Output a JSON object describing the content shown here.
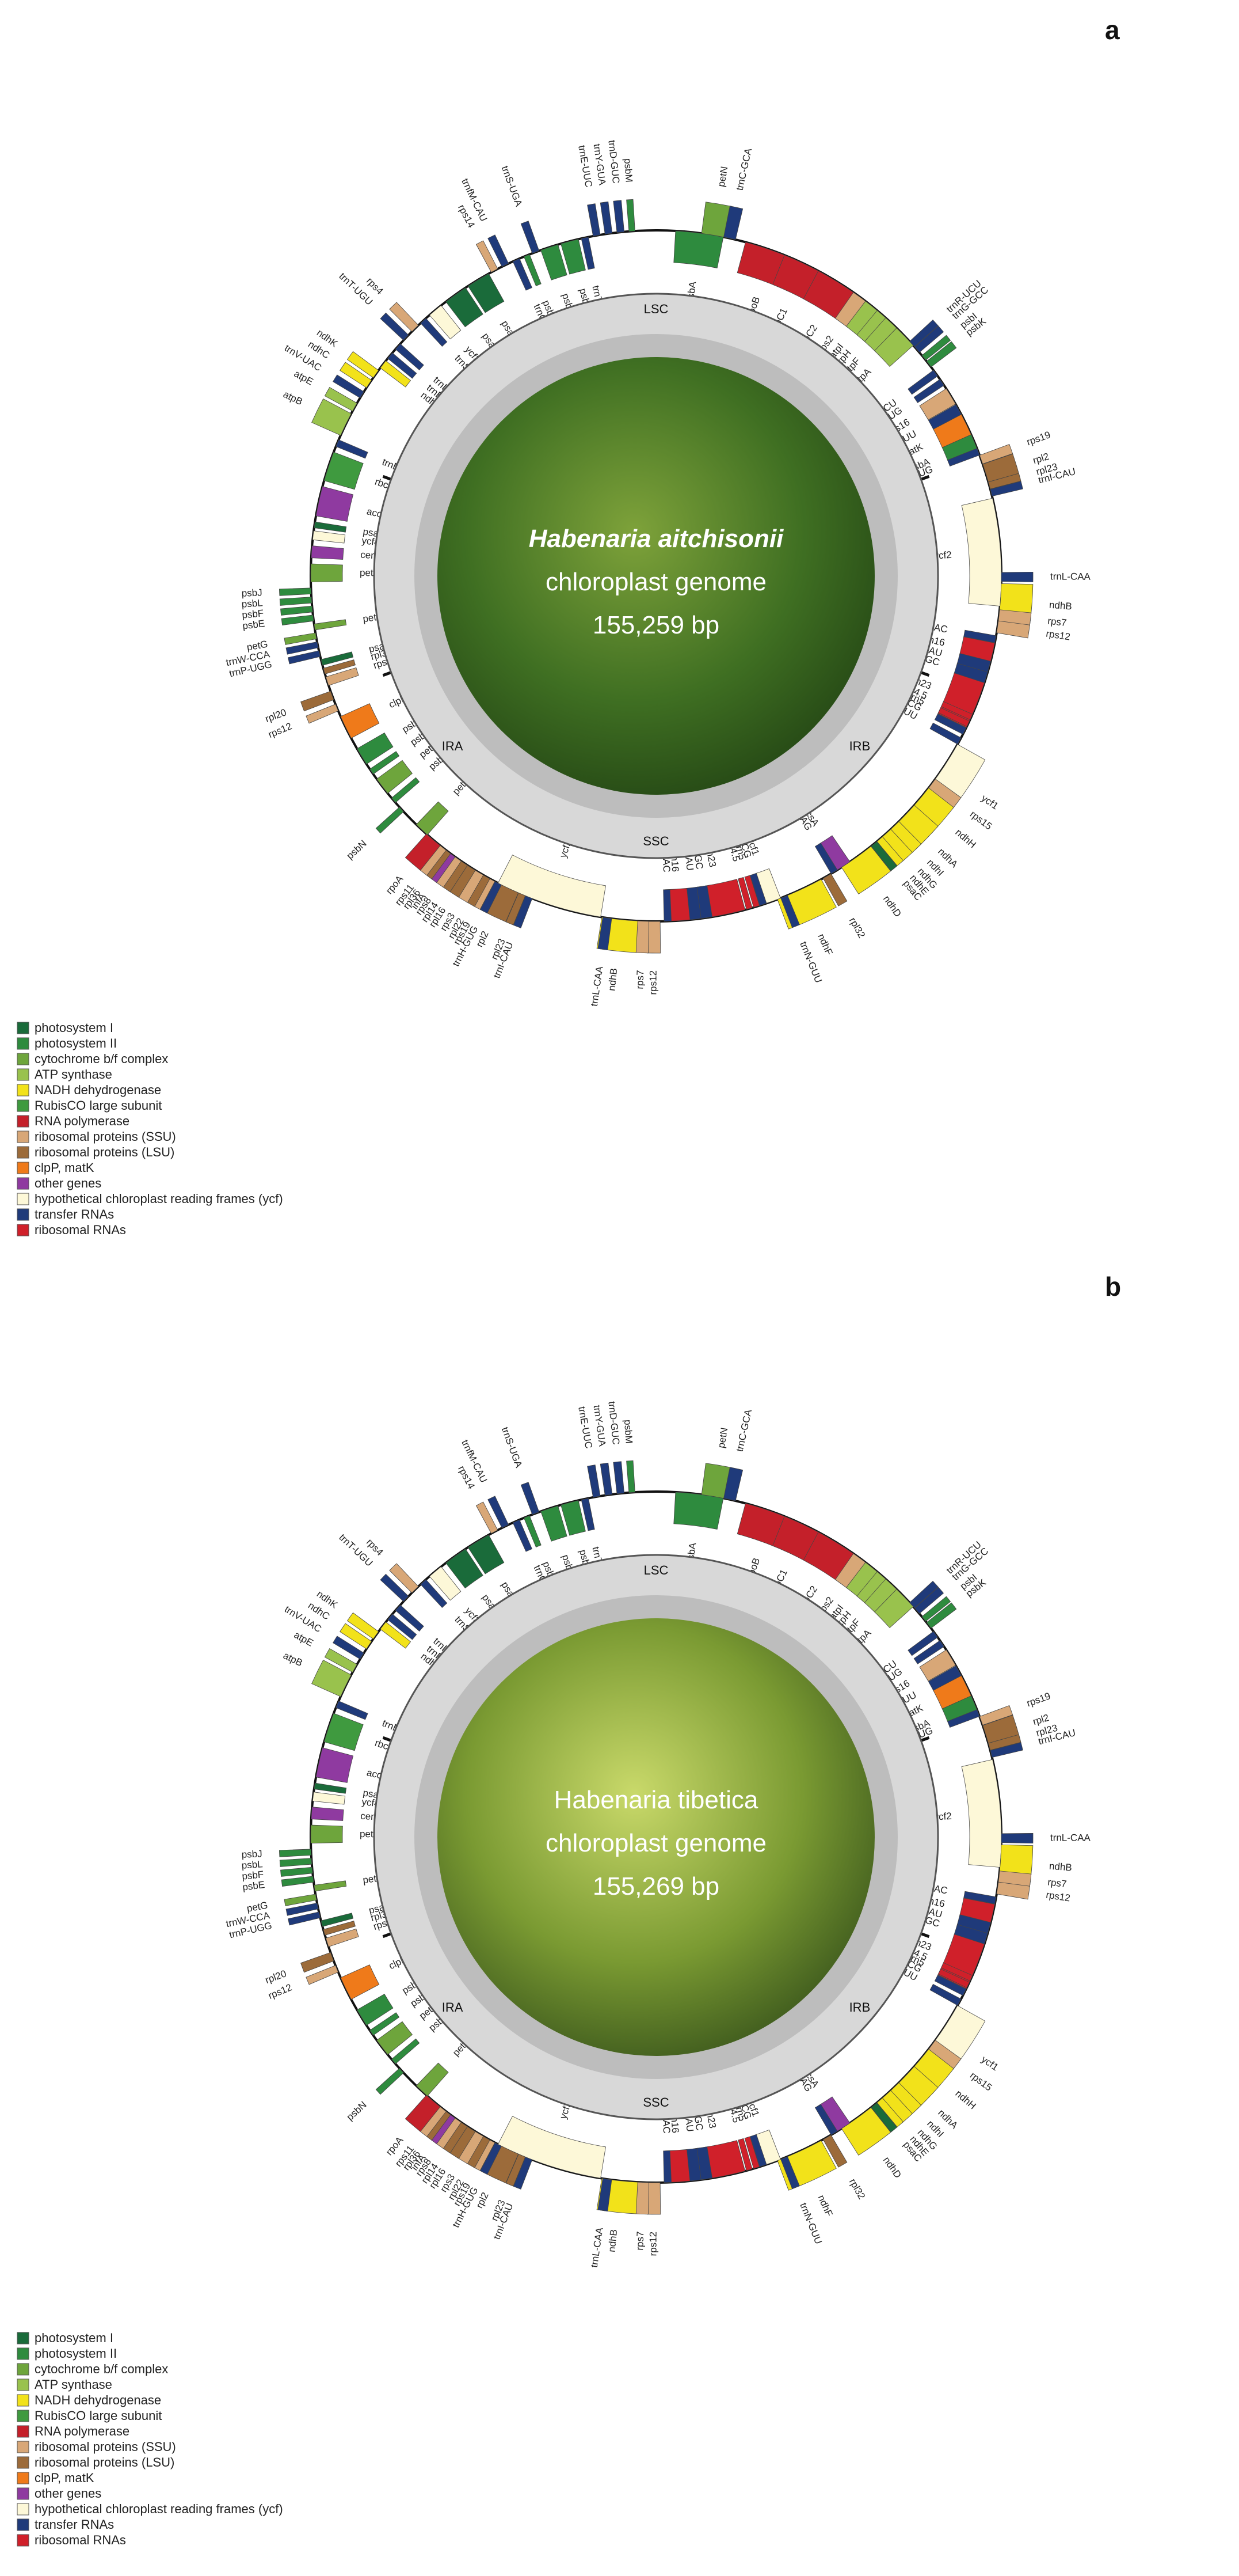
{
  "category_colors": {
    "PSI": "#1a6b3a",
    "PSII": "#2e8b3e",
    "CYT": "#6ea53c",
    "ATP": "#99c24d",
    "NDH": "#f2e21a",
    "RBC": "#3f9a3f",
    "RPO": "#c4202a",
    "SSU": "#d8a777",
    "LSU": "#9c6b3a",
    "CLP": "#ef7a1a",
    "OTH": "#8f3aa0",
    "YCF": "#fdf8d8",
    "TRN": "#1f3a7a",
    "RRN": "#d0202a"
  },
  "legend": [
    {
      "key": "PSI",
      "label": "photosystem I"
    },
    {
      "key": "PSII",
      "label": "photosystem II"
    },
    {
      "key": "CYT",
      "label": "cytochrome b/f complex"
    },
    {
      "key": "ATP",
      "label": "ATP synthase"
    },
    {
      "key": "NDH",
      "label": "NADH dehydrogenase"
    },
    {
      "key": "RBC",
      "label": "RubisCO large subunit"
    },
    {
      "key": "RPO",
      "label": "RNA polymerase"
    },
    {
      "key": "SSU",
      "label": "ribosomal proteins (SSU)"
    },
    {
      "key": "LSU",
      "label": "ribosomal proteins (LSU)"
    },
    {
      "key": "CLP",
      "label": "clpP, matK"
    },
    {
      "key": "OTH",
      "label": "other genes"
    },
    {
      "key": "YCF",
      "label": "hypothetical chloroplast reading frames (ycf)"
    },
    {
      "key": "TRN",
      "label": "transfer RNAs"
    },
    {
      "key": "RRN",
      "label": "ribosomal RNAs"
    }
  ],
  "regions": [
    "LSC",
    "IRB",
    "SSC",
    "IRA"
  ],
  "panels": [
    {
      "letter": "a",
      "species": "Habenaria aitchisonii",
      "subtitle": "chloroplast genome",
      "length": "155,259 bp",
      "photo": {
        "c1": "#7ea23a",
        "c2": "#3f6f22",
        "c3": "#1f3f12"
      }
    },
    {
      "letter": "b",
      "species": "Habenaria tibetica",
      "subtitle": "chloroplast genome",
      "length": "155,269 bp",
      "photo": {
        "c1": "#c9d96a",
        "c2": "#7a9a32",
        "c3": "#2f4a18"
      }
    }
  ],
  "genes": [
    {
      "name": "psbA",
      "a": 2,
      "w": 8,
      "cat": "PSII",
      "side": "in"
    },
    {
      "name": "petN",
      "a": 9,
      "w": 4,
      "cat": "CYT",
      "side": "out"
    },
    {
      "name": "trnC-GCA",
      "a": 15,
      "w": 2,
      "cat": "TRN",
      "side": "out"
    },
    {
      "name": "rpoB",
      "a": 21,
      "w": 10,
      "cat": "RPO",
      "side": "in"
    },
    {
      "name": "rpoC1",
      "a": 32,
      "w": 8,
      "cat": "RPO",
      "side": "in"
    },
    {
      "name": "rpoC2",
      "a": 42,
      "w": 9,
      "cat": "RPO",
      "side": "in"
    },
    {
      "name": "rps2",
      "a": 53,
      "w": 3,
      "cat": "SSU",
      "side": "in"
    },
    {
      "name": "atpI",
      "a": 57,
      "w": 3,
      "cat": "ATP",
      "side": "in"
    },
    {
      "name": "atpH",
      "a": 61,
      "w": 2,
      "cat": "ATP",
      "side": "in"
    },
    {
      "name": "atpF",
      "a": 64,
      "w": 3,
      "cat": "ATP",
      "side": "in"
    },
    {
      "name": "atpA",
      "a": 68,
      "w": 4,
      "cat": "ATP",
      "side": "in"
    },
    {
      "name": "trnR-UCU",
      "a": 73,
      "w": 1.2,
      "cat": "TRN",
      "side": "out"
    },
    {
      "name": "trnG-GCC",
      "a": 75,
      "w": 1.2,
      "cat": "TRN",
      "side": "out"
    },
    {
      "name": "psbI",
      "a": 78,
      "w": 1,
      "cat": "PSII",
      "side": "out"
    },
    {
      "name": "psbK",
      "a": 80,
      "w": 1.2,
      "cat": "PSII",
      "side": "out"
    },
    {
      "name": "trnS-GCU",
      "a": 83,
      "w": 1.2,
      "cat": "TRN",
      "side": "in"
    },
    {
      "name": "trnQ-UUG",
      "a": 86,
      "w": 1.2,
      "cat": "TRN",
      "side": "in"
    },
    {
      "name": "rps16",
      "a": 89,
      "w": 3,
      "cat": "SSU",
      "side": "in"
    },
    {
      "name": "trnK-UUU",
      "a": 94,
      "w": 2,
      "cat": "TRN",
      "side": "in"
    },
    {
      "name": "matK",
      "a": 97,
      "w": 4,
      "cat": "CLP",
      "side": "in"
    },
    {
      "name": "psbA",
      "a": 103,
      "w": 3,
      "cat": "PSII",
      "side": "in"
    },
    {
      "name": "trnH-GUG",
      "a": 107,
      "w": 1.2,
      "cat": "TRN",
      "side": "in"
    },
    {
      "name": "rps19",
      "a": 109,
      "w": 1.5,
      "cat": "SSU",
      "side": "out"
    },
    {
      "name": "rpl2",
      "a": 111.5,
      "w": 4,
      "cat": "LSU",
      "side": "out"
    },
    {
      "name": "rpl23",
      "a": 116.5,
      "w": 1.2,
      "cat": "LSU",
      "side": "out"
    },
    {
      "name": "trnI-CAU",
      "a": 118.5,
      "w": 1.2,
      "cat": "TRN",
      "side": "out"
    },
    {
      "name": "ycf2",
      "a": 121,
      "w": 18,
      "cat": "YCF",
      "side": "in"
    },
    {
      "name": "trnL-CAA",
      "a": 141,
      "w": 1.5,
      "cat": "TRN",
      "side": "out"
    },
    {
      "name": "ndhB",
      "a": 144,
      "w": 6,
      "cat": "NDH",
      "side": "out"
    },
    {
      "name": "rps7",
      "a": 151,
      "w": 2,
      "cat": "SSU",
      "side": "out"
    },
    {
      "name": "rps12",
      "a": 154,
      "w": 2,
      "cat": "SSU",
      "side": "out"
    },
    {
      "name": "trnV-GAC",
      "a": 158,
      "w": 1.2,
      "cat": "TRN",
      "side": "in"
    },
    {
      "name": "rrn16",
      "a": 160,
      "w": 4,
      "cat": "RRN",
      "side": "in"
    },
    {
      "name": "trnI-GAU",
      "a": 165,
      "w": 2,
      "cat": "TRN",
      "side": "in"
    },
    {
      "name": "trnA-UGC",
      "a": 168,
      "w": 2,
      "cat": "TRN",
      "side": "in"
    },
    {
      "name": "rrn23",
      "a": 171,
      "w": 8,
      "cat": "RRN",
      "side": "in"
    },
    {
      "name": "rrn4.5",
      "a": 180,
      "w": 1,
      "cat": "RRN",
      "side": "in"
    },
    {
      "name": "rrn5",
      "a": 182,
      "w": 1,
      "cat": "RRN",
      "side": "in"
    },
    {
      "name": "trnR-ACG",
      "a": 184,
      "w": 1.2,
      "cat": "TRN",
      "side": "in"
    },
    {
      "name": "trnN-GUU",
      "a": 187,
      "w": 1.2,
      "cat": "TRN",
      "side": "in"
    },
    {
      "name": "ycf1",
      "a": 189,
      "w": 10,
      "cat": "YCF",
      "side": "out"
    },
    {
      "name": "rps15",
      "a": 200,
      "w": 2,
      "cat": "SSU",
      "side": "out"
    },
    {
      "name": "ndhH",
      "a": 203,
      "w": 5,
      "cat": "NDH",
      "side": "out"
    },
    {
      "name": "ndhA",
      "a": 209,
      "w": 5,
      "cat": "NDH",
      "side": "out"
    },
    {
      "name": "ndhI",
      "a": 215,
      "w": 2,
      "cat": "NDH",
      "side": "out"
    },
    {
      "name": "ndhG",
      "a": 218,
      "w": 2,
      "cat": "NDH",
      "side": "out"
    },
    {
      "name": "ndhE",
      "a": 221,
      "w": 1.2,
      "cat": "NDH",
      "side": "out"
    },
    {
      "name": "psaC",
      "a": 223,
      "w": 1.2,
      "cat": "PSI",
      "side": "out"
    },
    {
      "name": "ndhD",
      "a": 225,
      "w": 6,
      "cat": "NDH",
      "side": "out"
    },
    {
      "name": "ccsA",
      "a": 232,
      "w": 3,
      "cat": "OTH",
      "side": "in"
    },
    {
      "name": "trnL-UAG",
      "a": 236,
      "w": 1.2,
      "cat": "TRN",
      "side": "in"
    },
    {
      "name": "rpl32",
      "a": 238,
      "w": 1.5,
      "cat": "LSU",
      "side": "out"
    },
    {
      "name": "ndhF",
      "a": 241,
      "w": 8,
      "cat": "NDH",
      "side": "out"
    },
    {
      "name": "trnN-GUU",
      "a": 251,
      "w": 1.2,
      "cat": "TRN",
      "side": "out"
    },
    {
      "name": "ycf1",
      "a": 253,
      "w": 3,
      "cat": "YCF",
      "side": "in"
    },
    {
      "name": "trnR-ACG",
      "a": 257,
      "w": 1.2,
      "cat": "TRN",
      "side": "in"
    },
    {
      "name": "rrn5",
      "a": 259,
      "w": 1,
      "cat": "RRN",
      "side": "in"
    },
    {
      "name": "rrn4.5",
      "a": 261,
      "w": 1,
      "cat": "RRN",
      "side": "in"
    },
    {
      "name": "rrn23",
      "a": 263,
      "w": 8,
      "cat": "RRN",
      "side": "in"
    },
    {
      "name": "trnA-UGC",
      "a": 272,
      "w": 2,
      "cat": "TRN",
      "side": "in"
    },
    {
      "name": "trnI-GAU",
      "a": 275,
      "w": 2,
      "cat": "TRN",
      "side": "in"
    },
    {
      "name": "rrn16",
      "a": 278,
      "w": 4,
      "cat": "RRN",
      "side": "in"
    },
    {
      "name": "trnV-GAC",
      "a": 283,
      "w": 1.2,
      "cat": "TRN",
      "side": "in"
    },
    {
      "name": "rps12",
      "a": 286,
      "w": 2,
      "cat": "SSU",
      "side": "out"
    },
    {
      "name": "rps7",
      "a": 289,
      "w": 2,
      "cat": "SSU",
      "side": "out"
    },
    {
      "name": "ndhB",
      "a": 292,
      "w": 6,
      "cat": "NDH",
      "side": "out"
    },
    {
      "name": "trnL-CAA",
      "a": 299,
      "w": 1.5,
      "cat": "TRN",
      "side": "out"
    },
    {
      "name": "ycf2",
      "a": 302,
      "w": 18,
      "cat": "YCF",
      "side": "in"
    },
    {
      "name": "trnI-CAU",
      "a": 321,
      "w": 1.2,
      "cat": "TRN",
      "side": "out"
    },
    {
      "name": "rpl23",
      "a": 323,
      "w": 1.2,
      "cat": "LSU",
      "side": "out"
    },
    {
      "name": "rpl2",
      "a": 325,
      "w": 4,
      "cat": "LSU",
      "side": "out"
    },
    {
      "name": "trnH-GUG",
      "a": 330,
      "w": 1.2,
      "cat": "TRN",
      "side": "out"
    },
    {
      "name": "rps19",
      "a": 332,
      "w": 1.2,
      "cat": "SSU",
      "side": "out"
    },
    {
      "name": "rpl22",
      "a": 333.5,
      "w": 1.5,
      "cat": "LSU",
      "side": "out"
    },
    {
      "name": "rps3",
      "a": 335.5,
      "w": 2,
      "cat": "SSU",
      "side": "out"
    },
    {
      "name": "rpl16",
      "a": 338,
      "w": 2,
      "cat": "LSU",
      "side": "out"
    },
    {
      "name": "rpl14",
      "a": 340.5,
      "w": 1.5,
      "cat": "LSU",
      "side": "out"
    },
    {
      "name": "rps8",
      "a": 342.5,
      "w": 1.5,
      "cat": "SSU",
      "side": "out"
    },
    {
      "name": "infA",
      "a": 344.5,
      "w": 1,
      "cat": "OTH",
      "side": "out"
    },
    {
      "name": "rpl36",
      "a": 346,
      "w": 1,
      "cat": "LSU",
      "side": "out"
    },
    {
      "name": "rps11",
      "a": 347.5,
      "w": 1.5,
      "cat": "SSU",
      "side": "out"
    },
    {
      "name": "rpoA",
      "a": 349.5,
      "w": 3,
      "cat": "RPO",
      "side": "out"
    },
    {
      "name": "petD",
      "a": 354,
      "w": 2.5,
      "cat": "CYT",
      "side": "in"
    }
  ],
  "genes_top": [
    {
      "name": "psbN",
      "a": 2,
      "w": 1,
      "cat": "PSII",
      "side": "out"
    },
    {
      "name": "psbH",
      "a": 4,
      "w": 1,
      "cat": "PSII",
      "side": "in"
    },
    {
      "name": "petB",
      "a": 6,
      "w": 3,
      "cat": "CYT",
      "side": "in"
    },
    {
      "name": "psbT",
      "a": 10,
      "w": 1,
      "cat": "PSII",
      "side": "in"
    },
    {
      "name": "psbB",
      "a": 12,
      "w": 3,
      "cat": "PSII",
      "side": "in"
    },
    {
      "name": "clpP",
      "a": 17,
      "w": 4,
      "cat": "CLP",
      "side": "in"
    },
    {
      "name": "rps12",
      "a": 22,
      "w": 1.2,
      "cat": "SSU",
      "side": "out"
    },
    {
      "name": "rpl20",
      "a": 24,
      "w": 1.5,
      "cat": "LSU",
      "side": "out"
    },
    {
      "name": "rps18",
      "a": 26.5,
      "w": 1.5,
      "cat": "SSU",
      "side": "in"
    },
    {
      "name": "rpl33",
      "a": 28.5,
      "w": 1,
      "cat": "LSU",
      "side": "in"
    },
    {
      "name": "psaJ",
      "a": 30,
      "w": 1,
      "cat": "PSI",
      "side": "in"
    },
    {
      "name": "trnP-UGG",
      "a": 31.5,
      "w": 1,
      "cat": "TRN",
      "side": "out"
    },
    {
      "name": "trnW-CCA",
      "a": 33,
      "w": 1,
      "cat": "TRN",
      "side": "out"
    },
    {
      "name": "petG",
      "a": 34.5,
      "w": 1,
      "cat": "CYT",
      "side": "out"
    },
    {
      "name": "petL",
      "a": 36,
      "w": 1,
      "cat": "CYT",
      "side": "in"
    },
    {
      "name": "psbE",
      "a": 37.5,
      "w": 1,
      "cat": "PSII",
      "side": "out"
    },
    {
      "name": "psbF",
      "a": 39,
      "w": 1,
      "cat": "PSII",
      "side": "out"
    },
    {
      "name": "psbL",
      "a": 40.5,
      "w": 1,
      "cat": "PSII",
      "side": "out"
    },
    {
      "name": "psbJ",
      "a": 42,
      "w": 1,
      "cat": "PSII",
      "side": "out"
    },
    {
      "name": "petA",
      "a": 44,
      "w": 3,
      "cat": "CYT",
      "side": "in"
    },
    {
      "name": "cemA",
      "a": 48,
      "w": 2,
      "cat": "OTH",
      "side": "in"
    },
    {
      "name": "ycf4",
      "a": 51,
      "w": 1.5,
      "cat": "YCF",
      "side": "in"
    },
    {
      "name": "psaI",
      "a": 53,
      "w": 1,
      "cat": "PSI",
      "side": "in"
    },
    {
      "name": "accD",
      "a": 55,
      "w": 5,
      "cat": "OTH",
      "side": "in"
    },
    {
      "name": "rbcL",
      "a": 61,
      "w": 5,
      "cat": "RBC",
      "side": "in"
    },
    {
      "name": "trnM-CAU",
      "a": 67,
      "w": 1.2,
      "cat": "TRN",
      "side": "in"
    },
    {
      "name": "atpB",
      "a": 69,
      "w": 4,
      "cat": "ATP",
      "side": "out"
    },
    {
      "name": "atpE",
      "a": 73.5,
      "w": 1.5,
      "cat": "ATP",
      "side": "out"
    },
    {
      "name": "trnV-UAC",
      "a": 76,
      "w": 1.2,
      "cat": "TRN",
      "side": "out"
    },
    {
      "name": "ndhC",
      "a": 78,
      "w": 1.5,
      "cat": "NDH",
      "side": "out"
    },
    {
      "name": "ndhK",
      "a": 80,
      "w": 1.5,
      "cat": "NDH",
      "side": "out"
    },
    {
      "name": "ndhJ",
      "a": 82,
      "w": 1.5,
      "cat": "NDH",
      "side": "in"
    },
    {
      "name": "trnF-GAA",
      "a": 84,
      "w": 1.2,
      "cat": "TRN",
      "side": "in"
    },
    {
      "name": "trnL-UAA",
      "a": 86,
      "w": 1.2,
      "cat": "TRN",
      "side": "in"
    },
    {
      "name": "trnT-UGU",
      "a": 88,
      "w": 1.2,
      "cat": "TRN",
      "side": "out"
    },
    {
      "name": "rps4",
      "a": 90,
      "w": 1.5,
      "cat": "SSU",
      "side": "out"
    },
    {
      "name": "trnS-GGA",
      "a": 92,
      "w": 1.2,
      "cat": "TRN",
      "side": "in"
    },
    {
      "name": "ycf3",
      "a": 94,
      "w": 2.5,
      "cat": "YCF",
      "side": "in"
    },
    {
      "name": "psaA",
      "a": 97.5,
      "w": 4,
      "cat": "PSI",
      "side": "in"
    },
    {
      "name": "psaB",
      "a": 102,
      "w": 4,
      "cat": "PSI",
      "side": "in"
    },
    {
      "name": "rps14",
      "a": 106.5,
      "w": 1.2,
      "cat": "SSU",
      "side": "out"
    },
    {
      "name": "trnfM-CAU",
      "a": 108.5,
      "w": 1.2,
      "cat": "TRN",
      "side": "out"
    },
    {
      "name": "trnG-UCC",
      "a": 110.5,
      "w": 1.2,
      "cat": "TRN",
      "side": "in"
    },
    {
      "name": "psbZ",
      "a": 112.5,
      "w": 1,
      "cat": "PSII",
      "side": "in"
    },
    {
      "name": "trnS-UGA",
      "a": 114,
      "w": 1.2,
      "cat": "TRN",
      "side": "out"
    },
    {
      "name": "psbC",
      "a": 115.5,
      "w": 3,
      "cat": "PSII",
      "side": "in"
    },
    {
      "name": "psbD",
      "a": 119,
      "w": 3,
      "cat": "PSII",
      "side": "in"
    },
    {
      "name": "trnT-GGU",
      "a": 122.5,
      "w": 1.2,
      "cat": "TRN",
      "side": "in"
    },
    {
      "name": "trnE-UUC",
      "a": 124.5,
      "w": 1.2,
      "cat": "TRN",
      "side": "out"
    },
    {
      "name": "trnY-GUA",
      "a": 126.5,
      "w": 1.2,
      "cat": "TRN",
      "side": "out"
    },
    {
      "name": "trnD-GUC",
      "a": 128.5,
      "w": 1.2,
      "cat": "TRN",
      "side": "out"
    },
    {
      "name": "psbM",
      "a": 130.5,
      "w": 1,
      "cat": "PSII",
      "side": "out"
    }
  ]
}
